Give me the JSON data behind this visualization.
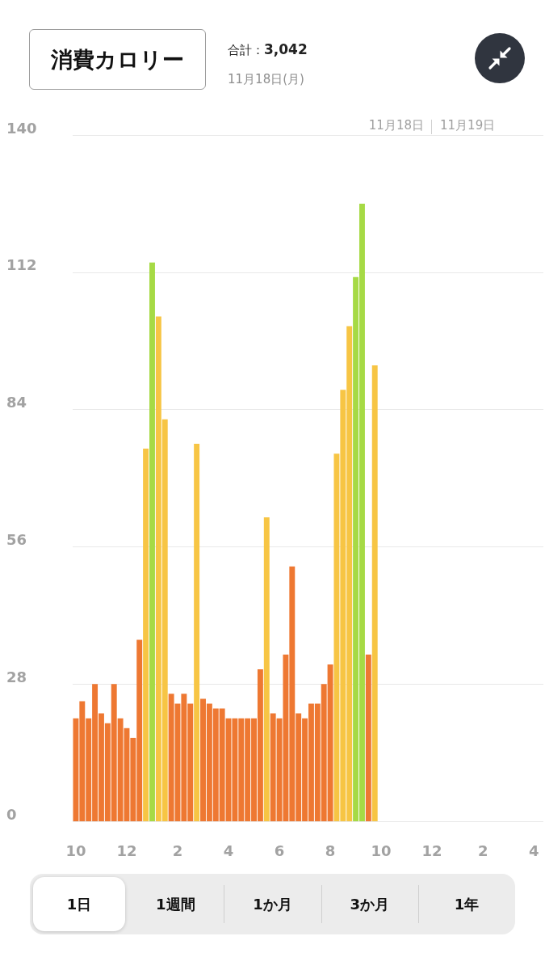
{
  "chart_data": {
    "type": "bar",
    "title": "消費カロリー",
    "subtitle": "11月18日(月)",
    "annotations": [
      "合計：3,042",
      "11月18日",
      "11月19日",
      "1日",
      "1週間",
      "1か月",
      "3か月",
      "1年"
    ],
    "categories": [
      "10",
      null,
      null,
      null,
      null,
      null,
      null,
      null,
      "12",
      null,
      null,
      null,
      null,
      null,
      null,
      null,
      "2",
      null,
      null,
      null,
      null,
      null,
      null,
      null,
      "4",
      null,
      null,
      null,
      null,
      null,
      null,
      null,
      "6",
      null,
      null,
      null,
      null,
      null,
      null,
      null,
      "8",
      null,
      null,
      null,
      null,
      null,
      null,
      null,
      "10",
      null,
      null,
      null,
      null,
      null,
      null,
      null,
      "12",
      null,
      null,
      null,
      null,
      null,
      null,
      null,
      "2",
      null,
      null,
      null,
      null,
      null,
      null,
      null,
      "4",
      null
    ],
    "values": [
      21,
      24.5,
      21,
      28,
      22,
      20,
      28,
      21,
      19,
      17,
      37,
      76,
      114,
      103,
      82,
      26,
      24,
      26,
      24,
      77,
      25,
      24,
      23,
      23,
      21,
      21,
      21,
      21,
      21,
      31,
      62,
      22,
      21,
      34,
      52,
      22,
      21,
      24,
      24,
      28,
      32,
      75,
      88,
      101,
      111,
      126,
      34,
      93,
      null,
      null,
      null,
      null,
      null,
      null,
      null,
      null,
      null,
      null,
      null,
      null,
      null,
      null,
      null,
      null,
      null,
      null,
      null,
      null,
      null,
      null,
      null,
      null,
      null,
      null
    ],
    "colors": [
      "#ee7832",
      "#ee7832",
      "#ee7832",
      "#ee7832",
      "#ee7832",
      "#ee7832",
      "#ee7832",
      "#ee7832",
      "#ee7832",
      "#ee7832",
      "#ee7832",
      "#f7c544",
      "#a6da45",
      "#f7c544",
      "#f7c544",
      "#ee7832",
      "#ee7832",
      "#ee7832",
      "#ee7832",
      "#f7c544",
      "#ee7832",
      "#ee7832",
      "#ee7832",
      "#ee7832",
      "#ee7832",
      "#ee7832",
      "#ee7832",
      "#ee7832",
      "#ee7832",
      "#ee7832",
      "#f7c544",
      "#ee7832",
      "#ee7832",
      "#ee7832",
      "#ee7832",
      "#ee7832",
      "#ee7832",
      "#ee7832",
      "#ee7832",
      "#ee7832",
      "#ee7832",
      "#f7c544",
      "#f7c544",
      "#f7c544",
      "#a6da45",
      "#a6da45",
      "#ee7832",
      "#f7c544",
      null,
      null,
      null,
      null,
      null,
      null,
      null,
      null,
      null,
      null,
      null,
      null,
      null,
      null,
      null,
      null,
      null,
      null,
      null,
      null,
      null,
      null,
      null,
      null,
      null,
      null
    ],
    "ylim": [
      0,
      140
    ],
    "yticks": [
      0,
      28,
      56,
      84,
      112,
      140
    ],
    "grid": "y"
  }
}
